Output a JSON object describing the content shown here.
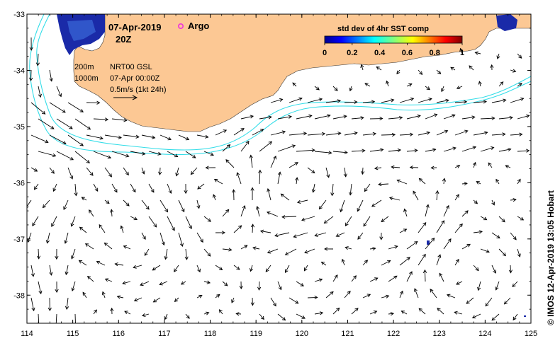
{
  "map": {
    "date_label": "07-Apr-2019",
    "time_label": "20Z",
    "argo_label": "Argo",
    "legend": {
      "iso_200": "200m",
      "iso_1000": "1000m",
      "product": "NRT00 GSL",
      "product_time": "07-Apr 00:00Z",
      "scale": "0.5m/s (1kt 24h)"
    },
    "colorbar": {
      "title": "std dev of 4hr SST comp",
      "ticks": [
        "0",
        "0.2",
        "0.4",
        "0.6",
        "0.8",
        "1"
      ]
    },
    "credit": "© IMOS 12-Apr-2019 13:05 Hobart",
    "x_ticks": [
      "114",
      "115",
      "116",
      "117",
      "118",
      "119",
      "120",
      "121",
      "122",
      "123",
      "124",
      "125"
    ],
    "y_ticks": [
      "-33",
      "-34",
      "-35",
      "-36",
      "-37",
      "-38"
    ],
    "colors": {
      "land": "#fcc894",
      "isobath": "#33dde8",
      "argo": "#ee33dd",
      "sst_patch": "#1a2aa8"
    }
  }
}
